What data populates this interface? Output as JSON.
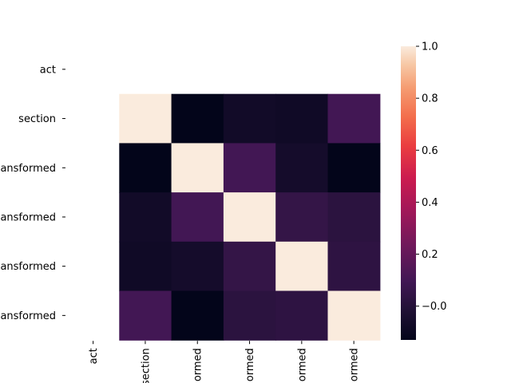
{
  "chart_data": {
    "type": "heatmap",
    "title": "",
    "xlabel": "",
    "ylabel": "",
    "row_labels": [
      "act",
      "section",
      "ansformed",
      "ansformed",
      "ansformed",
      "ansformed"
    ],
    "col_labels": [
      "act",
      "section",
      "ormed",
      "ormed",
      "ormed",
      "ormed"
    ],
    "values": [
      [
        null,
        null,
        null,
        null,
        null,
        null
      ],
      [
        null,
        1.0,
        -0.13,
        -0.07,
        -0.08,
        0.1
      ],
      [
        null,
        -0.13,
        1.0,
        0.1,
        -0.06,
        -0.15
      ],
      [
        null,
        -0.07,
        0.1,
        1.0,
        0.05,
        0.02
      ],
      [
        null,
        -0.08,
        -0.06,
        0.05,
        1.0,
        0.03
      ],
      [
        null,
        0.1,
        -0.15,
        0.02,
        0.03,
        1.0
      ]
    ],
    "colorbar": {
      "vmin": -0.13,
      "vmax": 1.0,
      "ticks": [
        -0.0,
        0.2,
        0.4,
        0.6,
        0.8,
        1.0
      ],
      "tick_labels": [
        "−0.0",
        "0.2",
        "0.4",
        "0.6",
        "0.8",
        "1.0"
      ]
    },
    "colormap": "rocket",
    "grid": false
  }
}
